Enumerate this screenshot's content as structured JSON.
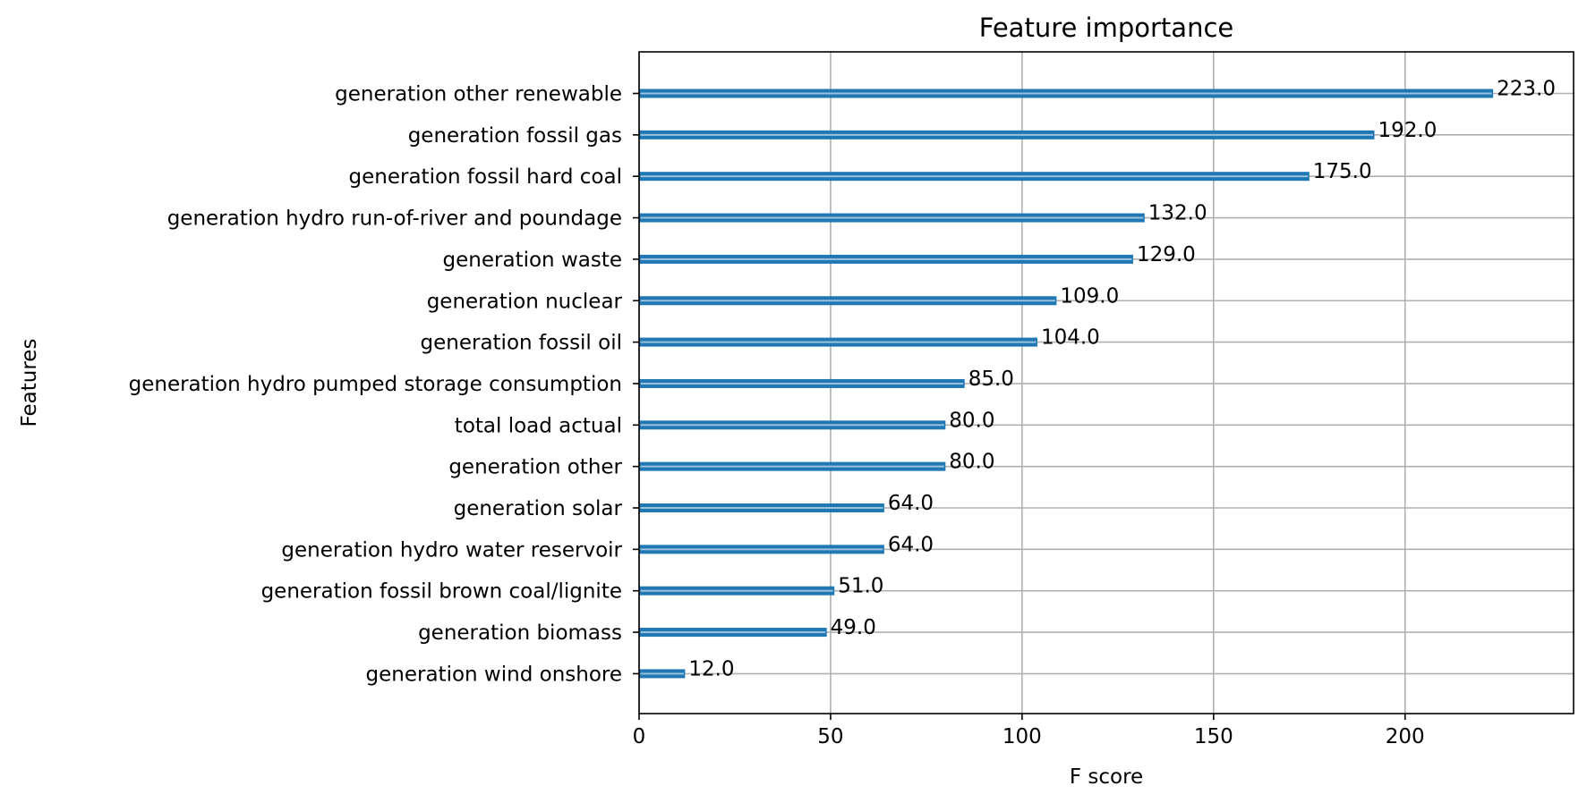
{
  "chart_data": {
    "type": "bar",
    "orientation": "horizontal",
    "title": "Feature importance",
    "xlabel": "F score",
    "ylabel": "Features",
    "xlim": [
      0,
      244
    ],
    "xticks": [
      0,
      50,
      100,
      150,
      200
    ],
    "grid": true,
    "bar_color": "#1f77b4",
    "categories": [
      "generation other renewable",
      "generation fossil gas",
      "generation fossil hard coal",
      "generation hydro run-of-river and poundage",
      "generation waste",
      "generation nuclear",
      "generation fossil oil",
      "generation hydro pumped storage consumption",
      "total load actual",
      "generation other",
      "generation solar",
      "generation hydro water reservoir",
      "generation fossil brown coal/lignite",
      "generation biomass",
      "generation wind onshore"
    ],
    "values": [
      223,
      192,
      175,
      132,
      129,
      109,
      104,
      85,
      80,
      80,
      64,
      64,
      51,
      49,
      12
    ],
    "value_labels": [
      "223.0",
      "192.0",
      "175.0",
      "132.0",
      "129.0",
      "109.0",
      "104.0",
      "85.0",
      "80.0",
      "80.0",
      "64.0",
      "64.0",
      "51.0",
      "49.0",
      "12.0"
    ]
  }
}
